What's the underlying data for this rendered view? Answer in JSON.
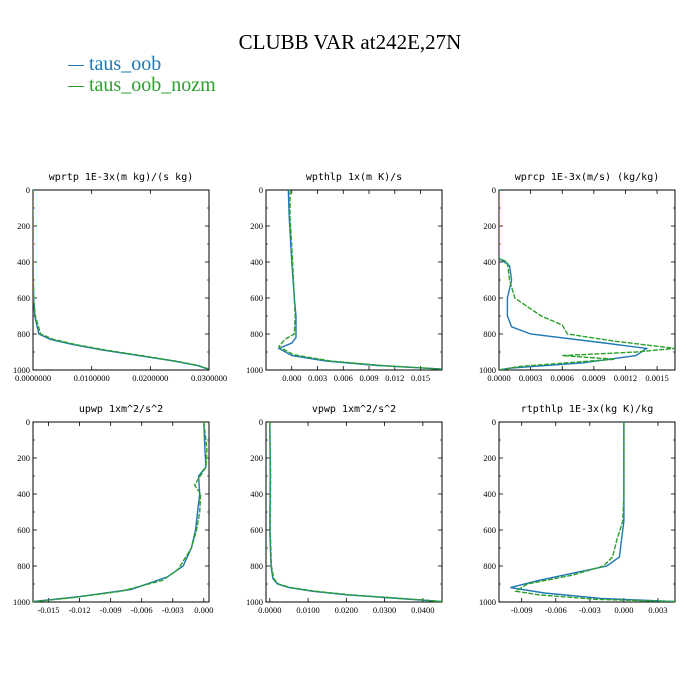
{
  "title": "CLUBB VAR at242E,27N",
  "legend": [
    {
      "label": "taus_oob",
      "color": "#1f77b4"
    },
    {
      "label": "taus_oob_nozm",
      "color": "#2ca02c"
    }
  ],
  "chart_data": [
    {
      "type": "line",
      "title": "wprtp  1E-3x(m kg)/(s kg)",
      "xlim": [
        0,
        0.03
      ],
      "ylim": [
        1000,
        0
      ],
      "xticks": [
        0,
        0.01,
        0.02,
        0.03
      ],
      "xticklabels": [
        "0.0000000",
        "0.0100000",
        "0.0200000",
        "0.0300000"
      ],
      "yticks": [
        0,
        200,
        400,
        600,
        800,
        1000
      ],
      "yticklabels": [
        "0",
        "200",
        "400",
        "600",
        "800",
        "1000"
      ],
      "series": [
        {
          "name": "taus_oob",
          "x": [
            0.0,
            0.0,
            0.0001,
            0.0003,
            0.001,
            0.003,
            0.007,
            0.012,
            0.018,
            0.024,
            0.028,
            0.0298
          ],
          "y": [
            0,
            400,
            600,
            700,
            800,
            830,
            860,
            890,
            920,
            950,
            975,
            995
          ]
        },
        {
          "name": "taus_oob_nozm",
          "x": [
            0.0,
            0.0,
            0.0001,
            0.0004,
            0.0013,
            0.0035,
            0.0075,
            0.0125,
            0.0185,
            0.0242,
            0.0282,
            0.03
          ],
          "y": [
            0,
            400,
            600,
            700,
            800,
            830,
            860,
            890,
            920,
            950,
            975,
            995
          ]
        }
      ]
    },
    {
      "type": "line",
      "title": "wpthlp  1x(m K)/s",
      "xlim": [
        -0.003,
        0.0175
      ],
      "ylim": [
        1000,
        0
      ],
      "xticks": [
        0,
        0.003,
        0.006,
        0.009,
        0.012,
        0.015
      ],
      "xticklabels": [
        "0.000",
        "0.003",
        "0.006",
        "0.009",
        "0.012",
        "0.015"
      ],
      "yticks": [
        0,
        200,
        400,
        600,
        800,
        1000
      ],
      "yticklabels": [
        "0",
        "200",
        "400",
        "600",
        "800",
        "1000"
      ],
      "series": [
        {
          "name": "taus_oob",
          "x": [
            -0.0004,
            -0.0003,
            0.0,
            0.0003,
            0.0005,
            0.0005,
            0.0,
            -0.0015,
            0.0,
            0.004,
            0.01,
            0.0175
          ],
          "y": [
            0,
            150,
            400,
            600,
            700,
            820,
            850,
            880,
            920,
            950,
            975,
            995
          ]
        },
        {
          "name": "taus_oob_nozm",
          "x": [
            -0.0002,
            -0.0002,
            0.0001,
            0.0003,
            0.0004,
            0.0003,
            -0.0008,
            -0.0015,
            0.0002,
            0.0045,
            0.0105,
            0.0175
          ],
          "y": [
            0,
            150,
            400,
            600,
            700,
            800,
            830,
            870,
            915,
            950,
            975,
            995
          ]
        }
      ]
    },
    {
      "type": "line",
      "title": "wprcp  1E-3x(m/s) (kg/kg)",
      "xlim": [
        0,
        0.00167
      ],
      "ylim": [
        1000,
        0
      ],
      "xticks": [
        0,
        0.0003,
        0.0006,
        0.0009,
        0.0012,
        0.0015
      ],
      "xticklabels": [
        "0.0000",
        "0.0003",
        "0.0006",
        "0.0009",
        "0.0012",
        "0.0015"
      ],
      "yticks": [
        0,
        200,
        400,
        600,
        800,
        1000
      ],
      "yticklabels": [
        "0",
        "200",
        "400",
        "600",
        "800",
        "1000"
      ],
      "series": [
        {
          "name": "taus_oob",
          "x": [
            0.0,
            0.0,
            0.0001,
            0.00012,
            8e-05,
            8e-05,
            0.00012,
            0.0003,
            0.001,
            0.0014,
            0.0013,
            0.0008,
            0.0001,
            0.0
          ],
          "y": [
            0,
            380,
            420,
            500,
            600,
            700,
            760,
            800,
            850,
            880,
            920,
            960,
            990,
            1000
          ]
        },
        {
          "name": "taus_oob_nozm",
          "x": [
            0.0,
            0.0,
            8e-05,
            0.0001,
            0.00015,
            0.0004,
            0.0006,
            0.00065,
            0.0011,
            0.00167,
            0.0013,
            0.0006,
            0.0011,
            0.0002,
            0.0
          ],
          "y": [
            0,
            380,
            400,
            500,
            600,
            700,
            750,
            800,
            840,
            880,
            900,
            920,
            940,
            980,
            1000
          ]
        }
      ]
    },
    {
      "type": "line",
      "title": "upwp  1xm^2/s^2",
      "xlim": [
        -0.0165,
        0.0005
      ],
      "ylim": [
        1000,
        0
      ],
      "xticks": [
        -0.015,
        -0.012,
        -0.009,
        -0.006,
        -0.003,
        0
      ],
      "xticklabels": [
        "-0.015",
        "-0.012",
        "-0.009",
        "-0.006",
        "-0.003",
        "0.000"
      ],
      "yticks": [
        0,
        200,
        400,
        600,
        800,
        1000
      ],
      "yticklabels": [
        "0",
        "200",
        "400",
        "600",
        "800",
        "1000"
      ],
      "series": [
        {
          "name": "taus_oob",
          "x": [
            0.0,
            0.0001,
            0.0002,
            -0.0005,
            -0.0004,
            -0.0006,
            -0.0008,
            -0.0012,
            -0.002,
            -0.0035,
            -0.007,
            -0.012,
            -0.0165
          ],
          "y": [
            0,
            150,
            250,
            300,
            400,
            500,
            600,
            700,
            800,
            860,
            930,
            970,
            998
          ]
        },
        {
          "name": "taus_oob_nozm",
          "x": [
            0.0,
            0.0003,
            0.0002,
            -0.0009,
            -0.0003,
            -0.0004,
            -0.0007,
            -0.0012,
            -0.0025,
            -0.004,
            -0.008,
            -0.0125,
            -0.0165
          ],
          "y": [
            0,
            150,
            250,
            350,
            400,
            500,
            600,
            700,
            820,
            880,
            940,
            975,
            998
          ]
        }
      ]
    },
    {
      "type": "line",
      "title": "vpwp  1xm^2/s^2",
      "xlim": [
        -0.001,
        0.045
      ],
      "ylim": [
        1000,
        0
      ],
      "xticks": [
        0,
        0.01,
        0.02,
        0.03,
        0.04
      ],
      "xticklabels": [
        "0.0000",
        "0.0100",
        "0.0200",
        "0.0300",
        "0.0400"
      ],
      "yticks": [
        0,
        200,
        400,
        600,
        800,
        1000
      ],
      "yticklabels": [
        "0",
        "200",
        "400",
        "600",
        "800",
        "1000"
      ],
      "series": [
        {
          "name": "taus_oob",
          "x": [
            0.0,
            0.0001,
            0.0,
            0.0003,
            0.0008,
            0.002,
            0.005,
            0.011,
            0.02,
            0.03,
            0.04,
            0.045
          ],
          "y": [
            0,
            300,
            600,
            800,
            870,
            900,
            920,
            940,
            960,
            975,
            990,
            998
          ]
        },
        {
          "name": "taus_oob_nozm",
          "x": [
            0.0,
            0.0002,
            0.0001,
            0.0004,
            0.001,
            0.0023,
            0.0055,
            0.0118,
            0.021,
            0.031,
            0.041,
            0.045
          ],
          "y": [
            0,
            300,
            600,
            800,
            870,
            900,
            920,
            940,
            960,
            975,
            990,
            998
          ]
        }
      ]
    },
    {
      "type": "line",
      "title": "rtpthlp  1E-3x(kg K)/kg",
      "xlim": [
        -0.011,
        0.0045
      ],
      "ylim": [
        1000,
        0
      ],
      "xticks": [
        -0.009,
        -0.006,
        -0.003,
        0,
        0.003
      ],
      "xticklabels": [
        "-0.009",
        "-0.006",
        "-0.003",
        "0.000",
        "0.003"
      ],
      "yticks": [
        0,
        200,
        400,
        600,
        800,
        1000
      ],
      "yticklabels": [
        "0",
        "200",
        "400",
        "600",
        "800",
        "1000"
      ],
      "series": [
        {
          "name": "taus_oob",
          "x": [
            0.0,
            0.0,
            0.0,
            -0.0002,
            -0.0004,
            -0.0015,
            -0.0045,
            -0.0075,
            -0.01,
            -0.007,
            -0.002,
            0.0045
          ],
          "y": [
            0,
            400,
            550,
            650,
            750,
            800,
            840,
            880,
            920,
            950,
            980,
            998
          ]
        },
        {
          "name": "taus_oob_nozm",
          "x": [
            0.0,
            0.0,
            -0.0001,
            -0.0006,
            -0.001,
            -0.0018,
            -0.0045,
            -0.0085,
            -0.0095,
            -0.0075,
            -0.0025,
            0.0045
          ],
          "y": [
            0,
            400,
            550,
            650,
            750,
            800,
            850,
            900,
            940,
            960,
            985,
            998
          ]
        }
      ]
    }
  ]
}
